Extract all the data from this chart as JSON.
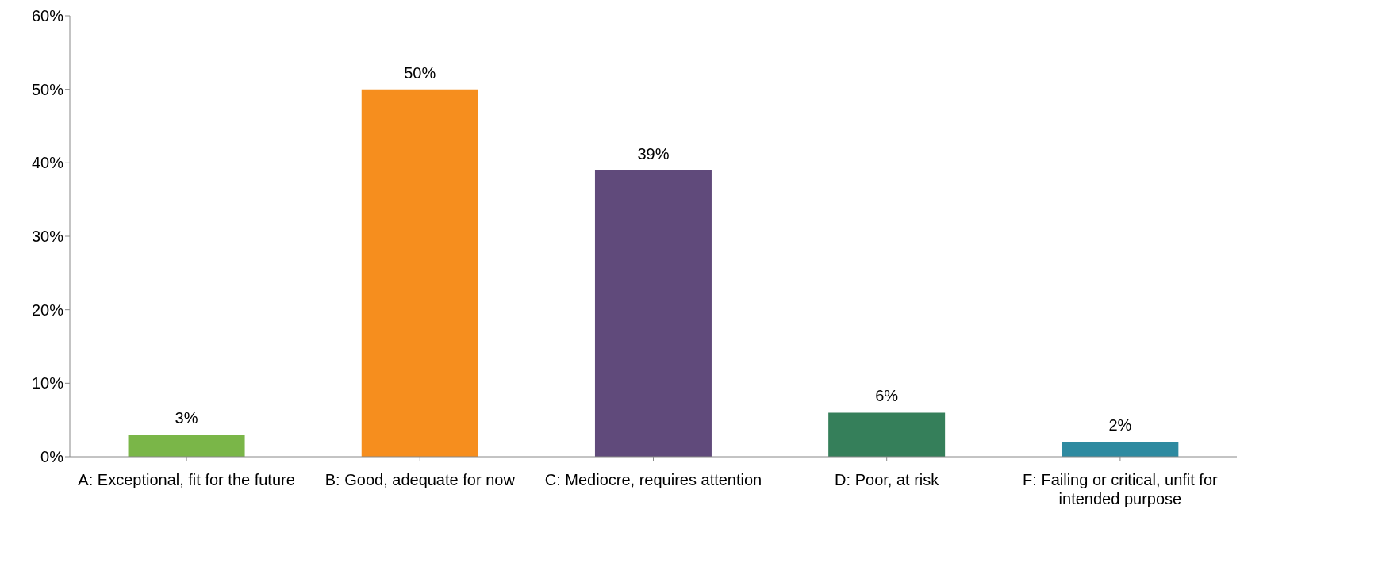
{
  "chart_data": {
    "type": "bar",
    "categories": [
      "A: Exceptional, fit for the future",
      "B: Good, adequate for now",
      "C: Mediocre, requires attention",
      "D: Poor, at risk",
      "F: Failing or critical, unfit for intended purpose"
    ],
    "values": [
      3,
      50,
      39,
      6,
      2
    ],
    "colors": [
      "#7ab648",
      "#f68e1e",
      "#604a7b",
      "#357f5a",
      "#2e8aa0"
    ],
    "value_labels": [
      "3%",
      "50%",
      "39%",
      "6%",
      "2%"
    ],
    "ylim": [
      0,
      60
    ],
    "yticks": [
      {
        "value": 0,
        "label": "0%"
      },
      {
        "value": 10,
        "label": "10%"
      },
      {
        "value": 20,
        "label": "20%"
      },
      {
        "value": 30,
        "label": "30%"
      },
      {
        "value": 40,
        "label": "40%"
      },
      {
        "value": 50,
        "label": "50%"
      },
      {
        "value": 60,
        "label": "60%"
      }
    ],
    "grid": false,
    "legend": false
  }
}
